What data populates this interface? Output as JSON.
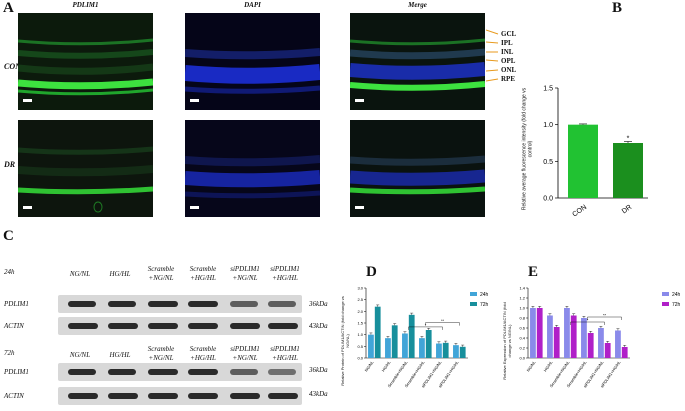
{
  "panels": {
    "A": "A",
    "B": "B",
    "C": "C",
    "D": "D",
    "E": "E"
  },
  "panelA": {
    "columns": [
      "PDLIM1",
      "DAPI",
      "Merge"
    ],
    "rows": [
      "CON",
      "DR"
    ],
    "layers": [
      "GCL",
      "IPL",
      "INL",
      "OPL",
      "ONL",
      "RPE"
    ],
    "colors": {
      "green": "#22c33a",
      "blue": "#1c2fd6",
      "dark": "#0c1a0c"
    }
  },
  "panelB": {
    "ylabel": "Relative average fluorescence intensity (fold change vs control)",
    "significance": "*",
    "chart_data": {
      "type": "bar",
      "categories": [
        "CON",
        "DR"
      ],
      "values": [
        1.0,
        0.75
      ],
      "errors": [
        0.01,
        0.02
      ],
      "ylim": [
        0.0,
        1.5
      ],
      "yticks": [
        "0.0",
        "0.5",
        "1.0",
        "1.5"
      ],
      "colors": [
        "#21c232",
        "#1b8f1e"
      ]
    }
  },
  "panelC": {
    "times": [
      "24h",
      "72h"
    ],
    "groups": [
      "NG/NL",
      "HG/HL",
      "Scramble +NG/NL",
      "Scramble +HG/HL",
      "siPDLIM1 +NG/NL",
      "siPDLIM1 +HG/HL"
    ],
    "proteins": [
      "PDLIM1",
      "ACTIN"
    ],
    "kda": [
      "36kDa",
      "43kDa"
    ]
  },
  "panelD": {
    "ylabel": "Relative Protein of PDLIM1/ACTIN (fold change vs NG/NL)",
    "chart_data": {
      "type": "bar",
      "categories": [
        "NG/NL",
        "HG/HL",
        "Scramble+NG/NL",
        "Scramble+HG/HL",
        "siPDLIM1+NG/NL",
        "siPDLIM1+HG/HL"
      ],
      "series": [
        {
          "name": "24h",
          "values": [
            1.0,
            0.85,
            1.05,
            0.85,
            0.62,
            0.55
          ],
          "color": "#41a5d8"
        },
        {
          "name": "72h",
          "values": [
            2.2,
            1.4,
            1.85,
            1.2,
            0.65,
            0.48
          ],
          "color": "#178f9c"
        }
      ],
      "ylim": [
        0.0,
        3.0
      ],
      "yticks": [
        "0.0",
        "0.5",
        "1.0",
        "1.5",
        "2.0",
        "2.5",
        "3.0"
      ],
      "significance": [
        "*",
        "*",
        "**"
      ]
    }
  },
  "panelE": {
    "ylabel": "Relative Expression of PDLIM1/ACTIN (fold change vs NG/NL)",
    "chart_data": {
      "type": "bar",
      "categories": [
        "NG/NL",
        "HG/HL",
        "Scramble+NG/NL",
        "Scramble+HG/HL",
        "siPDLIM1+NG/NL",
        "siPDLIM1+HG/HL"
      ],
      "series": [
        {
          "name": "24h",
          "values": [
            1.0,
            0.85,
            1.0,
            0.8,
            0.6,
            0.55
          ],
          "color": "#8a8aea"
        },
        {
          "name": "72h",
          "values": [
            1.0,
            0.62,
            0.85,
            0.5,
            0.3,
            0.22
          ],
          "color": "#b01fc8"
        }
      ],
      "ylim": [
        0.0,
        1.4
      ],
      "yticks": [
        "0.0",
        "0.2",
        "0.4",
        "0.6",
        "0.8",
        "1.0",
        "1.2",
        "1.4"
      ],
      "significance": [
        "*",
        "*",
        "**"
      ]
    }
  }
}
